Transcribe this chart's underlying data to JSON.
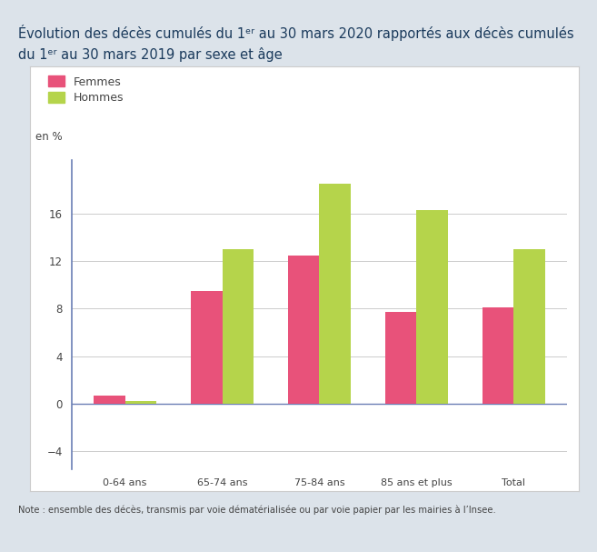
{
  "categories": [
    "0-64 ans",
    "65-74 ans",
    "75-84 ans",
    "85 ans et plus",
    "Total"
  ],
  "femmes": [
    0.7,
    9.5,
    12.5,
    7.7,
    8.1
  ],
  "hommes": [
    0.2,
    13.0,
    18.5,
    16.3,
    13.0
  ],
  "femmes_color": "#e8527a",
  "hommes_color": "#b5d44b",
  "ylabel": "en %",
  "ylim": [
    -5.5,
    20.5
  ],
  "yticks": [
    -4,
    0,
    4,
    8,
    12,
    16
  ],
  "legend_femmes": "Femmes",
  "legend_hommes": "Hommes",
  "note": "Note : ensemble des décès, transmis par voie dématérialisée ou par voie papier par les mairies à l’Insee.",
  "bg_outer": "#dce3ea",
  "bg_chart": "#ffffff",
  "axis_color": "#6b7fb5",
  "grid_color": "#cccccc",
  "title_color": "#1a3a5c",
  "text_color": "#444444",
  "bar_width": 0.32
}
